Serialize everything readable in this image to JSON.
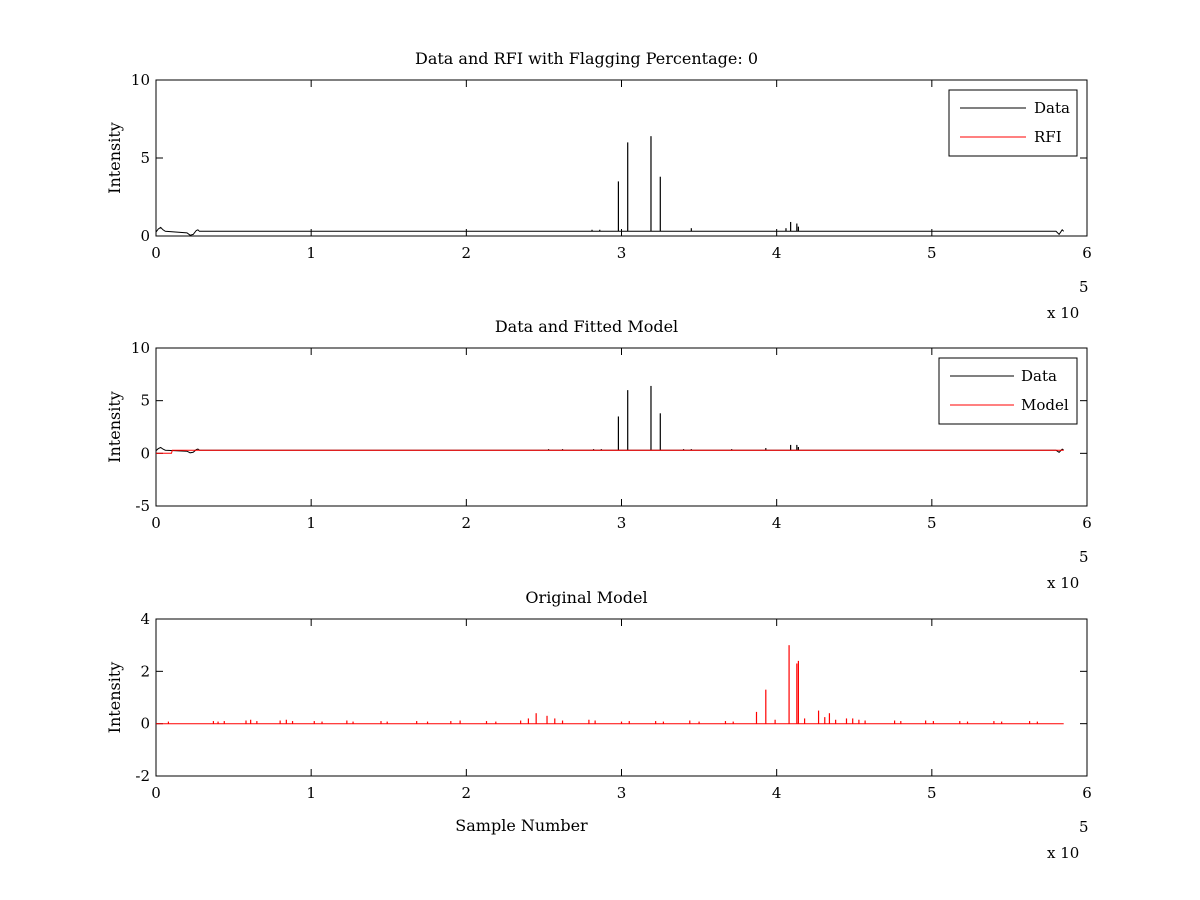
{
  "chart_data": [
    {
      "type": "line",
      "title": "Data and RFI with Flagging Percentage: 0",
      "xlabel": "",
      "ylabel": "Intensity",
      "xlim": [
        0,
        600000
      ],
      "ylim": [
        0,
        10
      ],
      "xticks": [
        0,
        1,
        2,
        3,
        4,
        5,
        6
      ],
      "yticks": [
        0,
        5,
        10
      ],
      "x_multiplier": {
        "base": "x 10",
        "exponent": "5"
      },
      "legend": {
        "position": "top-right",
        "entries": [
          "Data",
          "RFI"
        ]
      },
      "grid": false,
      "series": [
        {
          "name": "Data",
          "color": "#000000",
          "baseline": 0.3,
          "x_range": [
            0,
            585000
          ],
          "points": [
            [
              0,
              0.25
            ],
            [
              1500,
              0.45
            ],
            [
              3000,
              0.55
            ],
            [
              4500,
              0.4
            ],
            [
              6000,
              0.3
            ],
            [
              20000,
              0.2
            ],
            [
              22000,
              0.05
            ],
            [
              24000,
              0.1
            ],
            [
              26000,
              0.35
            ],
            [
              27000,
              0.4
            ],
            [
              28000,
              0.3
            ],
            [
              580000,
              0.3
            ],
            [
              582000,
              0.1
            ],
            [
              584000,
              0.4
            ],
            [
              585000,
              0.3
            ]
          ],
          "spikes": [
            [
              298000,
              3.5
            ],
            [
              304000,
              6.0
            ],
            [
              319000,
              6.4
            ],
            [
              325000,
              3.8
            ],
            [
              281000,
              0.4
            ],
            [
              286000,
              0.4
            ],
            [
              345000,
              0.5
            ],
            [
              406000,
              0.5
            ],
            [
              409000,
              0.9
            ],
            [
              413000,
              0.8
            ],
            [
              414000,
              0.6
            ]
          ]
        },
        {
          "name": "RFI",
          "color": "#ff0000",
          "points": [],
          "spikes": []
        }
      ]
    },
    {
      "type": "line",
      "title": "Data and Fitted Model",
      "xlabel": "",
      "ylabel": "Intensity",
      "xlim": [
        0,
        600000
      ],
      "ylim": [
        -5,
        10
      ],
      "xticks": [
        0,
        1,
        2,
        3,
        4,
        5,
        6
      ],
      "yticks": [
        -5,
        0,
        5,
        10
      ],
      "x_multiplier": {
        "base": "x 10",
        "exponent": "5"
      },
      "legend": {
        "position": "top-right",
        "entries": [
          "Data",
          "Model"
        ]
      },
      "grid": false,
      "series": [
        {
          "name": "Data",
          "color": "#000000",
          "baseline": 0.3,
          "x_range": [
            0,
            585000
          ],
          "points": [
            [
              0,
              0.25
            ],
            [
              1500,
              0.45
            ],
            [
              3000,
              0.55
            ],
            [
              4500,
              0.4
            ],
            [
              6000,
              0.3
            ],
            [
              20000,
              0.2
            ],
            [
              22000,
              0.05
            ],
            [
              24000,
              0.1
            ],
            [
              26000,
              0.35
            ],
            [
              27000,
              0.4
            ],
            [
              28000,
              0.3
            ],
            [
              580000,
              0.3
            ],
            [
              582000,
              0.1
            ],
            [
              584000,
              0.4
            ],
            [
              585000,
              0.3
            ]
          ],
          "spikes": [
            [
              298000,
              3.5
            ],
            [
              304000,
              6.0
            ],
            [
              319000,
              6.4
            ],
            [
              325000,
              3.8
            ],
            [
              253000,
              0.4
            ],
            [
              262000,
              0.4
            ],
            [
              282000,
              0.4
            ],
            [
              287000,
              0.4
            ],
            [
              340000,
              0.4
            ],
            [
              345000,
              0.4
            ],
            [
              371000,
              0.4
            ],
            [
              393000,
              0.5
            ],
            [
              409000,
              0.8
            ],
            [
              413000,
              0.8
            ],
            [
              414000,
              0.6
            ]
          ]
        },
        {
          "name": "Model",
          "color": "#ff0000",
          "baseline": 0.3,
          "x_range": [
            0,
            585000
          ],
          "points": [
            [
              0,
              0.0
            ],
            [
              1000,
              0.0
            ],
            [
              10000,
              0.0
            ],
            [
              10500,
              0.3
            ],
            [
              585000,
              0.3
            ]
          ],
          "spikes": []
        }
      ]
    },
    {
      "type": "line",
      "title": "Original Model",
      "xlabel": "Sample Number",
      "ylabel": "Intensity",
      "xlim": [
        0,
        600000
      ],
      "ylim": [
        -2,
        4
      ],
      "xticks": [
        0,
        1,
        2,
        3,
        4,
        5,
        6
      ],
      "yticks": [
        -2,
        0,
        2,
        4
      ],
      "x_multiplier": {
        "base": "x 10",
        "exponent": "5"
      },
      "legend": null,
      "grid": false,
      "series": [
        {
          "name": "",
          "color": "#ff0000",
          "baseline": 0.0,
          "x_range": [
            0,
            585000
          ],
          "points": [],
          "spikes": [
            [
              8000,
              0.08
            ],
            [
              37000,
              0.1
            ],
            [
              40000,
              0.08
            ],
            [
              44000,
              0.1
            ],
            [
              58000,
              0.12
            ],
            [
              61000,
              0.15
            ],
            [
              65000,
              0.1
            ],
            [
              80000,
              0.12
            ],
            [
              84000,
              0.15
            ],
            [
              88000,
              0.1
            ],
            [
              102000,
              0.1
            ],
            [
              107000,
              0.08
            ],
            [
              123000,
              0.12
            ],
            [
              127000,
              0.08
            ],
            [
              145000,
              0.1
            ],
            [
              149000,
              0.08
            ],
            [
              168000,
              0.1
            ],
            [
              175000,
              0.08
            ],
            [
              190000,
              0.1
            ],
            [
              196000,
              0.12
            ],
            [
              213000,
              0.1
            ],
            [
              219000,
              0.08
            ],
            [
              235000,
              0.12
            ],
            [
              240000,
              0.2
            ],
            [
              245000,
              0.4
            ],
            [
              252000,
              0.3
            ],
            [
              257000,
              0.2
            ],
            [
              262000,
              0.12
            ],
            [
              279000,
              0.15
            ],
            [
              283000,
              0.12
            ],
            [
              300000,
              0.08
            ],
            [
              305000,
              0.1
            ],
            [
              322000,
              0.1
            ],
            [
              327000,
              0.08
            ],
            [
              344000,
              0.12
            ],
            [
              350000,
              0.08
            ],
            [
              367000,
              0.1
            ],
            [
              372000,
              0.08
            ],
            [
              387000,
              0.45
            ],
            [
              393000,
              1.3
            ],
            [
              399000,
              0.15
            ],
            [
              408000,
              3.0
            ],
            [
              413000,
              2.3
            ],
            [
              414000,
              2.4
            ],
            [
              418000,
              0.2
            ],
            [
              427000,
              0.5
            ],
            [
              431000,
              0.25
            ],
            [
              434000,
              0.4
            ],
            [
              438000,
              0.15
            ],
            [
              445000,
              0.2
            ],
            [
              449000,
              0.2
            ],
            [
              453000,
              0.15
            ],
            [
              457000,
              0.12
            ],
            [
              476000,
              0.12
            ],
            [
              480000,
              0.1
            ],
            [
              496000,
              0.12
            ],
            [
              501000,
              0.1
            ],
            [
              518000,
              0.1
            ],
            [
              523000,
              0.08
            ],
            [
              540000,
              0.1
            ],
            [
              545000,
              0.08
            ],
            [
              563000,
              0.1
            ],
            [
              568000,
              0.08
            ]
          ]
        }
      ]
    }
  ]
}
